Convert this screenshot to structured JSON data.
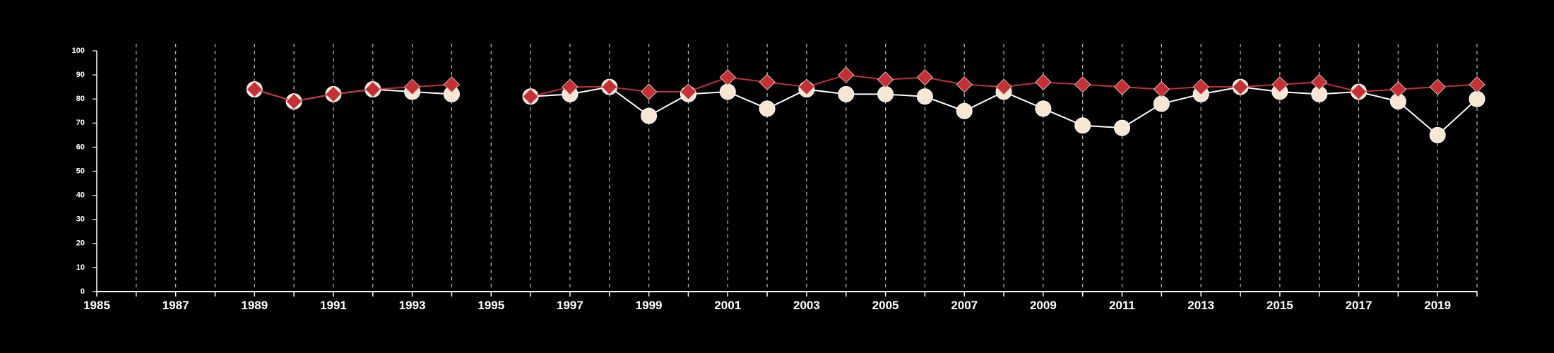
{
  "chart_data": {
    "type": "line",
    "x": [
      1989,
      1990,
      1991,
      1992,
      1993,
      1994,
      1996,
      1997,
      1998,
      1999,
      2000,
      2001,
      2002,
      2003,
      2004,
      2005,
      2006,
      2007,
      2008,
      2009,
      2010,
      2011,
      2012,
      2013,
      2014,
      2015,
      2016,
      2017,
      2018,
      2019,
      2020
    ],
    "series": [
      {
        "marker": "circle",
        "color": "#ffffff",
        "fill": "#f6e6d2",
        "values": [
          84,
          79,
          82,
          84,
          83,
          82,
          81,
          82,
          85,
          73,
          82,
          83,
          76,
          84,
          82,
          82,
          81,
          75,
          83,
          76,
          69,
          68,
          78,
          82,
          85,
          83,
          82,
          83,
          79,
          65,
          80
        ]
      },
      {
        "marker": "diamond",
        "color": "#c62f34",
        "fill": "#c62f34",
        "values": [
          84,
          79,
          82,
          84,
          85,
          86,
          81,
          85,
          85,
          83,
          83,
          89,
          87,
          85,
          90,
          88,
          89,
          86,
          85,
          87,
          86,
          85,
          84,
          85,
          85,
          86,
          87,
          83,
          84,
          85,
          86
        ]
      }
    ],
    "xlim": [
      1985,
      2020
    ],
    "ylim": [
      0,
      100
    ],
    "xticks": [
      "1985",
      "1987",
      "1989",
      "1991",
      "1993",
      "1995",
      "1997",
      "1999",
      "2001",
      "2003",
      "2005",
      "2007",
      "2009",
      "2011",
      "2013",
      "2015",
      "2017",
      "2019"
    ],
    "yticks": [
      "0",
      "10",
      "20",
      "30",
      "40",
      "50",
      "60",
      "70",
      "80",
      "90",
      "100"
    ],
    "vertical_gridlines": "dashed, every year",
    "title": "",
    "xlabel": "",
    "ylabel": ""
  }
}
